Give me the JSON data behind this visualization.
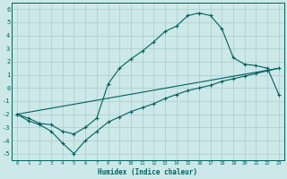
{
  "xlabel": "Humidex (Indice chaleur)",
  "bg_color": "#cce8e8",
  "line_color": "#006060",
  "grid_color": "#aacccc",
  "grid_minor_color": "#bbdddd",
  "xlim": [
    -0.5,
    23.5
  ],
  "ylim": [
    -5.5,
    6.5
  ],
  "xticks": [
    0,
    1,
    2,
    3,
    4,
    5,
    6,
    7,
    8,
    9,
    10,
    11,
    12,
    13,
    14,
    15,
    16,
    17,
    18,
    19,
    20,
    21,
    22,
    23
  ],
  "yticks": [
    -5,
    -4,
    -3,
    -2,
    -1,
    0,
    1,
    2,
    3,
    4,
    5,
    6
  ],
  "curve1_x": [
    0,
    1,
    2,
    3,
    4,
    5,
    6,
    7,
    8,
    9,
    10,
    11,
    12,
    13,
    14,
    15,
    16,
    17,
    18,
    19,
    20,
    21,
    22,
    23
  ],
  "curve1_y": [
    -2.0,
    -2.3,
    -2.7,
    -2.8,
    -3.3,
    -3.5,
    -3.0,
    -2.3,
    0.3,
    1.5,
    2.2,
    2.8,
    3.5,
    4.3,
    4.7,
    5.5,
    5.7,
    5.5,
    4.5,
    2.3,
    1.8,
    1.7,
    1.5,
    -0.5
  ],
  "curve2_x": [
    0,
    1,
    2,
    3,
    4,
    5,
    6,
    7,
    8,
    9,
    10,
    11,
    12,
    13,
    14,
    15,
    16,
    17,
    18,
    19,
    20,
    21,
    22,
    23
  ],
  "curve2_y": [
    -2.0,
    -2.5,
    -2.8,
    -3.3,
    -4.2,
    -5.0,
    -4.0,
    -3.3,
    -2.6,
    -2.2,
    -1.8,
    -1.5,
    -1.2,
    -0.8,
    -0.5,
    -0.2,
    0.0,
    0.2,
    0.5,
    0.7,
    0.9,
    1.1,
    1.3,
    1.5
  ],
  "line_x": [
    0,
    23
  ],
  "line_y": [
    -2.0,
    1.5
  ]
}
